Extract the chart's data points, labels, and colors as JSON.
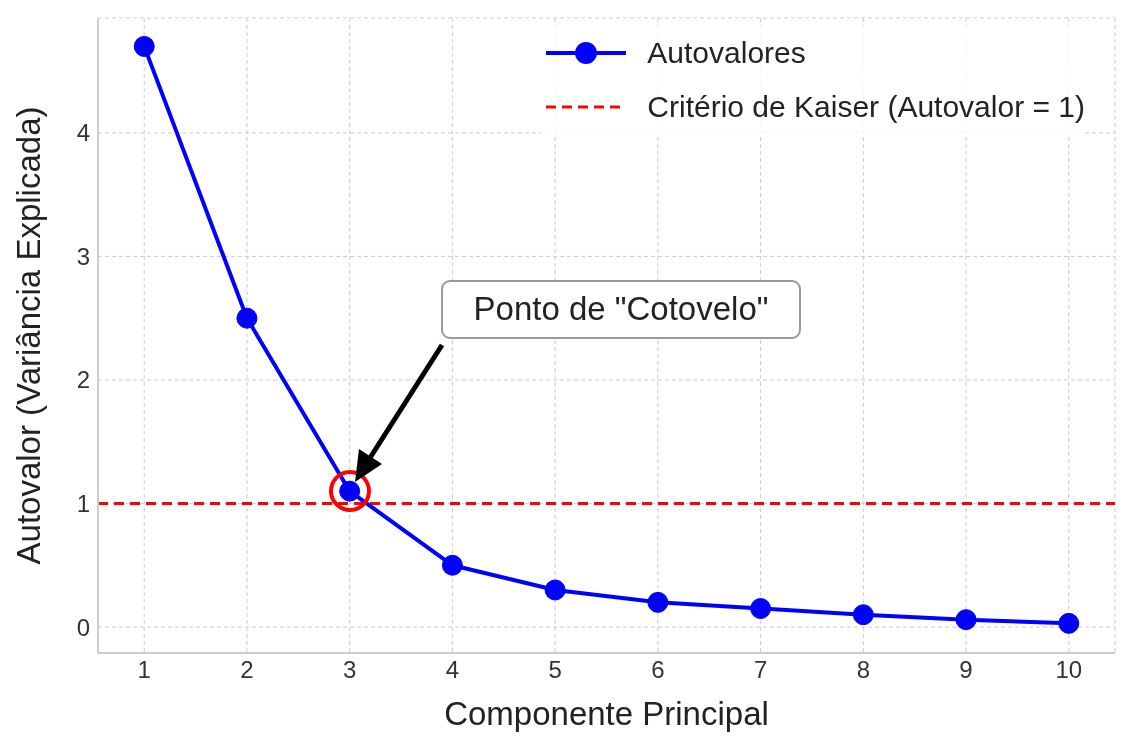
{
  "chart_data": {
    "type": "line",
    "xlabel": "Componente Principal",
    "ylabel": "Autovalor (Variância Explicada)",
    "x": [
      1,
      2,
      3,
      4,
      5,
      6,
      7,
      8,
      9,
      10
    ],
    "series": [
      {
        "name": "Autovalores",
        "color": "#0000ff",
        "values": [
          4.7,
          2.5,
          1.1,
          0.5,
          0.3,
          0.2,
          0.15,
          0.1,
          0.06,
          0.03
        ]
      }
    ],
    "xlim": [
      0.55,
      10.45
    ],
    "xticks": [
      1,
      2,
      3,
      4,
      5,
      6,
      7,
      8,
      9,
      10
    ],
    "ylim": [
      -0.21,
      4.93
    ],
    "yticks": [
      0,
      1,
      2,
      3,
      4
    ],
    "ref_lines": [
      {
        "axis": "y",
        "value": 1,
        "label": "Critério de Kaiser (Autovalor = 1)",
        "color": "#ff0000",
        "line_style": "dashed"
      }
    ],
    "annotations": [
      "Ponto de \"Cotovelo\""
    ],
    "grid": true,
    "legend": "top right",
    "marker": "circle",
    "line_style": "solid"
  }
}
